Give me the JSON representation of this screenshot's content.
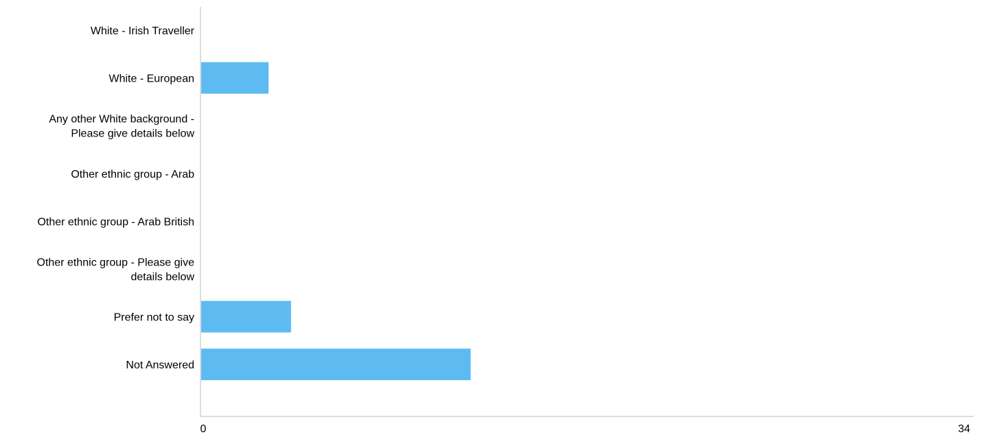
{
  "chart_data": {
    "type": "bar",
    "orientation": "horizontal",
    "categories": [
      [
        "White - Irish Traveller"
      ],
      [
        "White - European"
      ],
      [
        "Any other White background -",
        "Please give details below"
      ],
      [
        "Other ethnic group - Arab"
      ],
      [
        "Other ethnic group - Arab British"
      ],
      [
        "Other ethnic group - Please give",
        "details below"
      ],
      [
        "Prefer not to say"
      ],
      [
        "Not Answered"
      ]
    ],
    "values": [
      0,
      3,
      0,
      0,
      0,
      0,
      4,
      12
    ],
    "xlim": [
      0,
      34
    ],
    "x_tick_labels": [
      "0",
      "34"
    ],
    "bar_color": "#5ebbf2",
    "axis_color": "#dddddd",
    "grid": false,
    "legend": "none"
  }
}
